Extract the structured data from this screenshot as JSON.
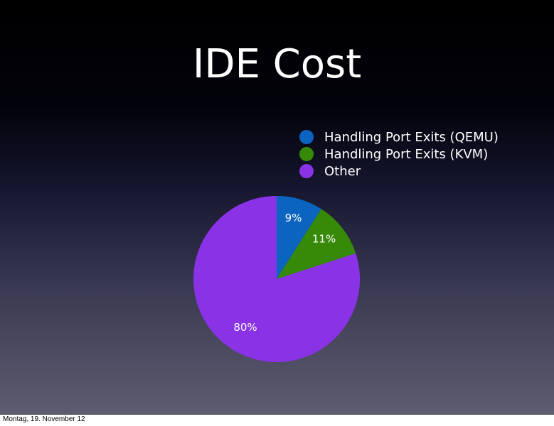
{
  "slide": {
    "title": "IDE Cost",
    "footer_date": "Montag, 19. November 12"
  },
  "chart_data": {
    "type": "pie",
    "title": "",
    "legend_position": "top-right",
    "categories": [
      "Handling Port Exits (QEMU)",
      "Handling Port Exits (KVM)",
      "Other"
    ],
    "values": [
      9,
      11,
      80
    ],
    "labels": [
      "9%",
      "11%",
      "80%"
    ],
    "colors": [
      "#0a64c0",
      "#378a08",
      "#8a33e6"
    ]
  }
}
